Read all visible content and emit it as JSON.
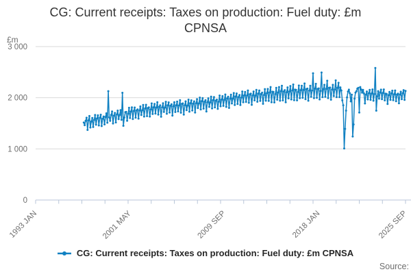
{
  "title": {
    "line1": "CG: Current receipts: Taxes on production: Fuel duty: £m",
    "line2": "CPNSA"
  },
  "y_axis": {
    "unit": "£m",
    "ticks": [
      {
        "label": "3 000",
        "value": 3000
      },
      {
        "label": "2 000",
        "value": 2000
      },
      {
        "label": "1 000",
        "value": 1000
      },
      {
        "label": "0",
        "value": 0
      }
    ]
  },
  "x_axis": {
    "ticks": [
      {
        "label": "1993 JAN",
        "month": 0
      },
      {
        "label": "2001 MAY",
        "month": 100
      },
      {
        "label": "2009 SEP",
        "month": 200
      },
      {
        "label": "2018 JAN",
        "month": 300
      },
      {
        "label": "2025 SEP",
        "month": 392
      }
    ],
    "minor_tick_count": 17
  },
  "legend": {
    "label": "CG: Current receipts: Taxes on production: Fuel duty: £m CPNSA"
  },
  "source": {
    "label": "Source:"
  },
  "colors": {
    "accent": "#1181c2",
    "grid": "#d9d9d9",
    "axis": "#b8c6d8",
    "tick_text": "#6e6e6e",
    "title_text": "#333333"
  },
  "chart_data": {
    "type": "line",
    "title": "CG: Current receipts: Taxes on production: Fuel duty: £m CPNSA",
    "xlabel": "",
    "ylabel": "£m",
    "ylim": [
      0,
      3000
    ],
    "grid": "horizontal",
    "legend_position": "bottom",
    "frequency": "monthly",
    "x_axis_start": "1993-01",
    "x_start": "1997-04",
    "x_end": "2025-09",
    "start_offset_months": 51,
    "values": [
      1515,
      1462,
      1548,
      1608,
      1372,
      1556,
      1642,
      1418,
      1533,
      1604,
      1428,
      1565,
      1662,
      1473,
      1592,
      1655,
      1459,
      1607,
      1668,
      1447,
      1588,
      1633,
      1478,
      1622,
      1694,
      1512,
      2128,
      1617,
      1548,
      1662,
      1731,
      1497,
      1648,
      1702,
      1517,
      1671,
      1748,
      1582,
      1663,
      1757,
      1568,
      2096,
      1452,
      1612,
      1718,
      1722,
      1551,
      1688,
      1803,
      1604,
      1729,
      1812,
      1585,
      1741,
      1808,
      1611,
      1752,
      1771,
      1592,
      1748,
      1829,
      1662,
      1754,
      1858,
      1633,
      1788,
      1862,
      1641,
      1797,
      1812,
      1633,
      1771,
      1888,
      1682,
      1811,
      1879,
      1691,
      1808,
      1912,
      1672,
      1822,
      1851,
      1628,
      1812,
      1891,
      1722,
      1808,
      1921,
      1688,
      1851,
      1908,
      1711,
      1843,
      1872,
      1651,
      1833,
      1912,
      1721,
      1852,
      1923,
      1733,
      1848,
      1952,
      1708,
      1881,
      1888,
      1672,
      1851,
      1928,
      1758,
      1847,
      1962,
      1728,
      1892,
      1948,
      1752,
      1884,
      1928,
      1712,
      1892,
      1971,
      1798,
      1888,
      2002,
      1771,
      1932,
      1992,
      1788,
      1922,
      1952,
      1731,
      1911,
      1989,
      1822,
      1908,
      2021,
      1792,
      1951,
      2012,
      1812,
      1942,
      1962,
      1782,
      1922,
      2042,
      1833,
      1962,
      2031,
      1842,
      1958,
      2062,
      1821,
      1988,
      2018,
      1802,
      1978,
      2058,
      1888,
      1982,
      2091,
      1858,
      2022,
      2082,
      1878,
      2012,
      2052,
      1858,
      2002,
      2122,
      1912,
      2042,
      2112,
      1918,
      2042,
      2142,
      1902,
      2068,
      2078,
      1862,
      2042,
      2121,
      1948,
      2041,
      2152,
      1922,
      2078,
      2142,
      1938,
      2072,
      2098,
      1882,
      2052,
      2168,
      1942,
      2088,
      2171,
      1938,
      2102,
      2208,
      1912,
      2118,
      2112,
      1908,
      2072,
      2192,
      1962,
      2102,
      2208,
      1942,
      2128,
      2232,
      1948,
      2122,
      2148,
      1912,
      2108,
      2202,
      1988,
      2122,
      2228,
      1968,
      2142,
      2258,
      1952,
      2158,
      2152,
      1948,
      2112,
      2238,
      1992,
      2148,
      2232,
      1998,
      2152,
      2278,
      1972,
      2168,
      2178,
      1942,
      2138,
      2232,
      2018,
      2142,
      2478,
      1992,
      2178,
      2272,
      1998,
      2172,
      2182,
      1968,
      2132,
      2492,
      2012,
      2168,
      2252,
      2018,
      2172,
      2332,
      1992,
      2192,
      2198,
      1962,
      2158,
      2252,
      2032,
      2162,
      2338,
      2012,
      2192,
      2292,
      2012,
      2202,
      2142,
      1948,
      1852,
      1008,
      1392,
      1748,
      2008,
      2122,
      2158,
      2088,
      1928,
      2058,
      1242,
      1478,
      1982,
      2102,
      2128,
      2178,
      2192,
      1712,
      2208,
      2162,
      2098,
      2152,
      2082,
      1888,
      2058,
      2122,
      1968,
      2088,
      2152,
      1958,
      2078,
      2162,
      1942,
      2072,
      2582,
      1748,
      2028,
      2128,
      1982,
      2098,
      2158,
      1972,
      2092,
      2162,
      1948,
      2078,
      2072,
      1878,
      2048,
      2112,
      1958,
      2082,
      2138,
      1952,
      2068,
      2142,
      1932,
      2062,
      2078,
      1892,
      2058,
      2118,
      1972,
      2088,
      2148,
      1958,
      2132
    ]
  }
}
